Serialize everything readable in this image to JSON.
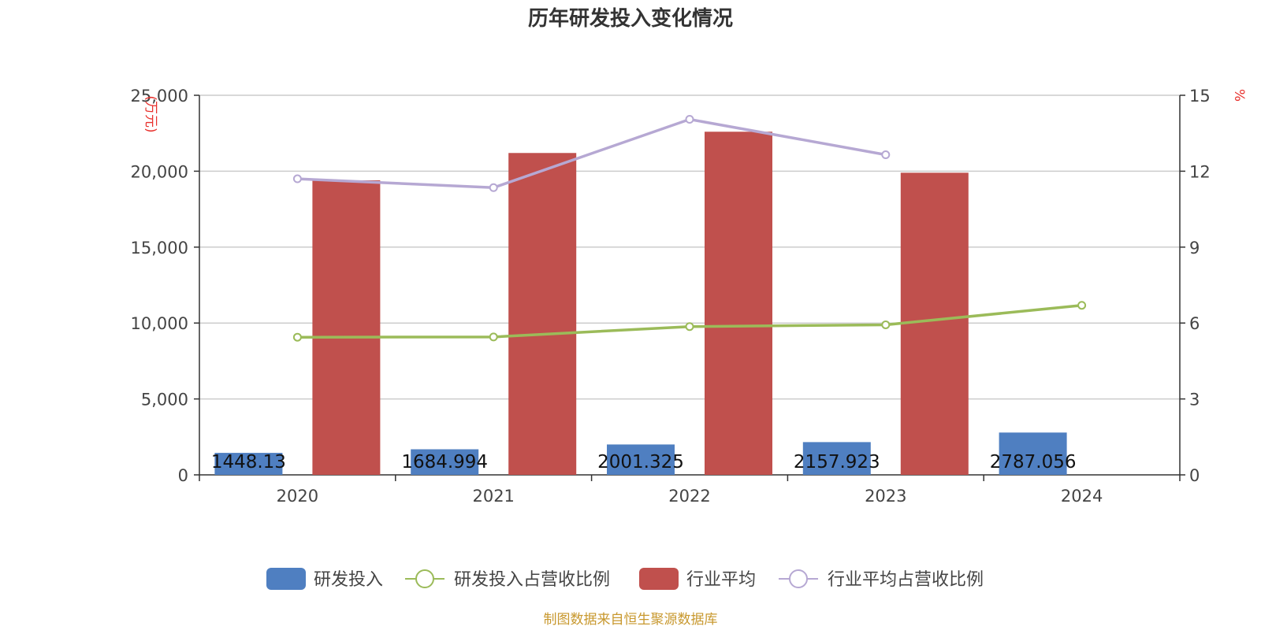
{
  "chart_data": {
    "type": "bar",
    "title": "历年研发投入变化情况",
    "categories": [
      "2020",
      "2021",
      "2022",
      "2023",
      "2024"
    ],
    "y_left": {
      "unit": "(万元)",
      "ticks": [
        "0",
        "5,000",
        "10,000",
        "15,000",
        "20,000",
        "25,000"
      ],
      "ylim": [
        0,
        25000
      ]
    },
    "y_right": {
      "unit": "%",
      "ticks": [
        "0",
        "3",
        "6",
        "9",
        "12",
        "15"
      ],
      "ylim": [
        0,
        15
      ]
    },
    "grid": true,
    "legend_position": "bottom-center",
    "series": [
      {
        "name": "研发投入",
        "type": "bar",
        "axis": "left",
        "color": "#4f7fc1",
        "values": [
          1448.13,
          1684.994,
          2001.325,
          2157.923,
          2787.056
        ],
        "labels": [
          "1448.13",
          "1684.994",
          "2001.325",
          "2157.923",
          "2787.056"
        ]
      },
      {
        "name": "研发投入占营收比例",
        "type": "line",
        "axis": "right",
        "color": "#9bbb59",
        "values": [
          5.44,
          5.45,
          5.86,
          5.93,
          6.7
        ]
      },
      {
        "name": "行业平均",
        "type": "bar",
        "axis": "left",
        "color": "#c0504d",
        "values": [
          19400,
          21200,
          22600,
          19900,
          null
        ]
      },
      {
        "name": "行业平均占营收比例",
        "type": "line",
        "axis": "right",
        "color": "#b6a8d3",
        "values": [
          11.7,
          11.35,
          14.05,
          12.65,
          null
        ]
      }
    ]
  },
  "footer": {
    "source": "制图数据来自恒生聚源数据库"
  }
}
